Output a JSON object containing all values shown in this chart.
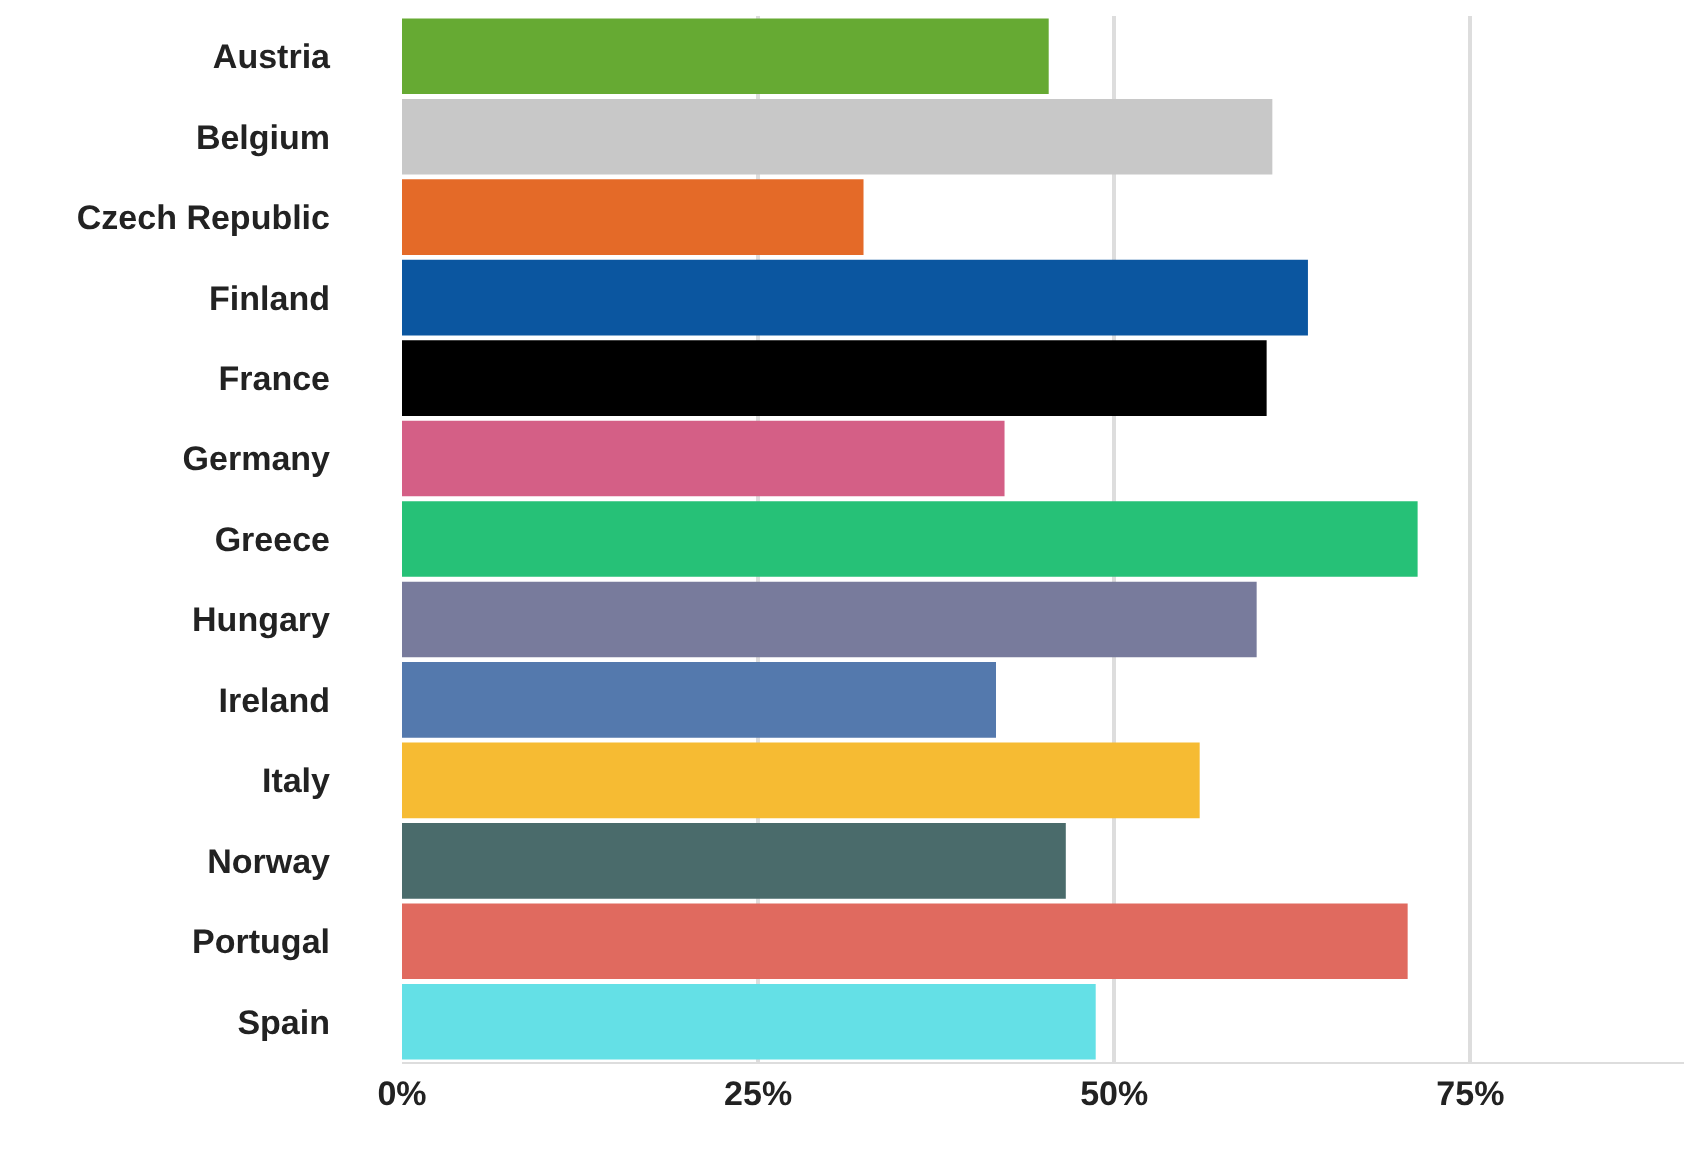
{
  "chart_data": {
    "type": "bar",
    "orientation": "horizontal",
    "categories": [
      "Austria",
      "Belgium",
      "Czech Republic",
      "Finland",
      "France",
      "Germany",
      "Greece",
      "Hungary",
      "Ireland",
      "Italy",
      "Norway",
      "Portugal",
      "Spain"
    ],
    "values": [
      45.4,
      61.1,
      32.4,
      63.6,
      60.7,
      42.3,
      71.3,
      60.0,
      41.7,
      56.0,
      46.6,
      70.6,
      48.7
    ],
    "colors": [
      "#66aa33",
      "#c8c8c8",
      "#e46a28",
      "#0b56a0",
      "#000000",
      "#d45f86",
      "#26c177",
      "#787b9c",
      "#5479ad",
      "#f6bb33",
      "#4a6b6b",
      "#e06a5f",
      "#64e0e6"
    ],
    "xlim": [
      0,
      90
    ],
    "xticks": [
      {
        "value": 0,
        "label": "0%"
      },
      {
        "value": 25,
        "label": "25%"
      },
      {
        "value": 50,
        "label": "50%"
      },
      {
        "value": 75,
        "label": "75%"
      }
    ],
    "grid": "x"
  }
}
